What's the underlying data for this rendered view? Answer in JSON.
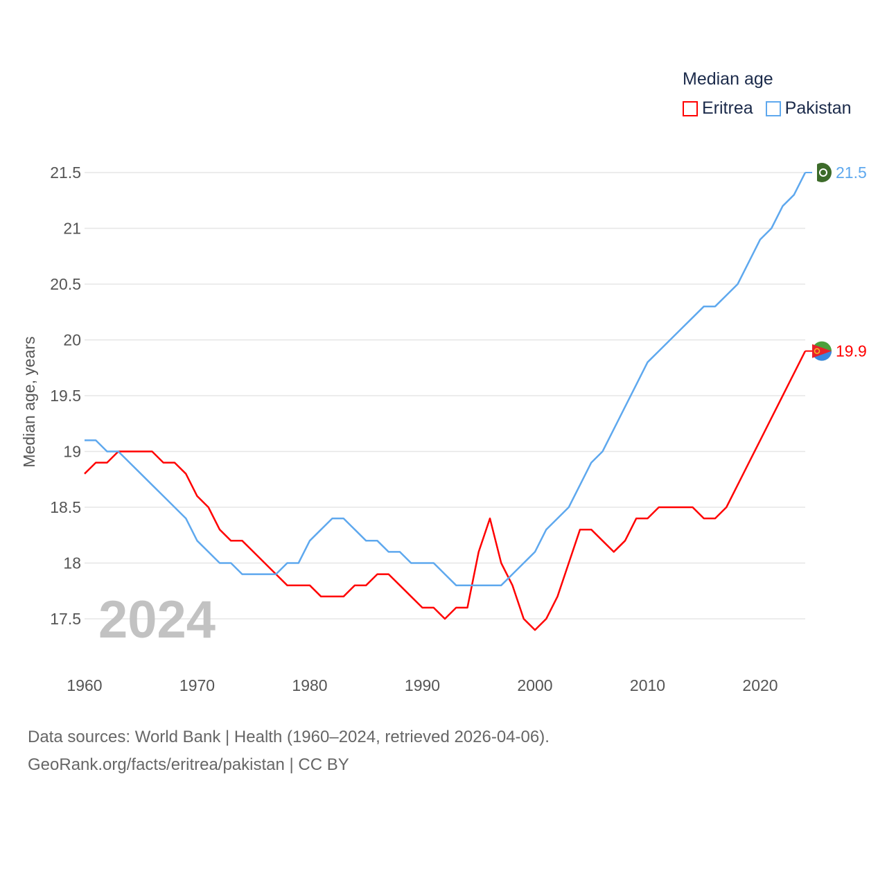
{
  "chart_data": {
    "type": "line",
    "title": "Median age",
    "xlabel": "",
    "ylabel": "Median age, years",
    "xlim": [
      1960,
      2024
    ],
    "ylim": [
      17.25,
      21.6
    ],
    "x_ticks": [
      "1960",
      "1970",
      "1980",
      "1990",
      "2000",
      "2010",
      "2020"
    ],
    "y_ticks": [
      "17.5",
      "18",
      "18.5",
      "19",
      "19.5",
      "20",
      "20.5",
      "21",
      "21.5"
    ],
    "grid": true,
    "legend_placement": "top-right",
    "year_label": "2024",
    "x": [
      1960,
      1961,
      1962,
      1963,
      1964,
      1965,
      1966,
      1967,
      1968,
      1969,
      1970,
      1971,
      1972,
      1973,
      1974,
      1975,
      1976,
      1977,
      1978,
      1979,
      1980,
      1981,
      1982,
      1983,
      1984,
      1985,
      1986,
      1987,
      1988,
      1989,
      1990,
      1991,
      1992,
      1993,
      1994,
      1995,
      1996,
      1997,
      1998,
      1999,
      2000,
      2001,
      2002,
      2003,
      2004,
      2005,
      2006,
      2007,
      2008,
      2009,
      2010,
      2011,
      2012,
      2013,
      2014,
      2015,
      2016,
      2017,
      2018,
      2019,
      2020,
      2021,
      2022,
      2023,
      2024
    ],
    "series": [
      {
        "name": "Eritrea",
        "color": "#ff0000",
        "end_label": "19.9",
        "values": [
          18.8,
          18.9,
          18.9,
          19.0,
          19.0,
          19.0,
          19.0,
          18.9,
          18.9,
          18.8,
          18.6,
          18.5,
          18.3,
          18.2,
          18.2,
          18.1,
          18.0,
          17.9,
          17.8,
          17.8,
          17.8,
          17.7,
          17.7,
          17.7,
          17.8,
          17.8,
          17.9,
          17.9,
          17.8,
          17.7,
          17.6,
          17.6,
          17.5,
          17.6,
          17.6,
          18.1,
          18.4,
          18.0,
          17.8,
          17.5,
          17.4,
          17.5,
          17.7,
          18.0,
          18.3,
          18.3,
          18.2,
          18.1,
          18.2,
          18.4,
          18.4,
          18.5,
          18.5,
          18.5,
          18.5,
          18.4,
          18.4,
          18.5,
          18.7,
          18.9,
          19.1,
          19.3,
          19.5,
          19.7,
          19.9
        ]
      },
      {
        "name": "Pakistan",
        "color": "#5ea8ee",
        "end_label": "21.5",
        "values": [
          19.1,
          19.1,
          19.0,
          19.0,
          18.9,
          18.8,
          18.7,
          18.6,
          18.5,
          18.4,
          18.2,
          18.1,
          18.0,
          18.0,
          17.9,
          17.9,
          17.9,
          17.9,
          18.0,
          18.0,
          18.2,
          18.3,
          18.4,
          18.4,
          18.3,
          18.2,
          18.2,
          18.1,
          18.1,
          18.0,
          18.0,
          18.0,
          17.9,
          17.8,
          17.8,
          17.8,
          17.8,
          17.8,
          17.9,
          18.0,
          18.1,
          18.3,
          18.4,
          18.5,
          18.7,
          18.9,
          19.0,
          19.2,
          19.4,
          19.6,
          19.8,
          19.9,
          20.0,
          20.1,
          20.2,
          20.3,
          20.3,
          20.4,
          20.5,
          20.7,
          20.9,
          21.0,
          21.2,
          21.3,
          21.5
        ]
      }
    ]
  },
  "footer": {
    "line1": "Data sources: World Bank | Health (1960–2024, retrieved 2026-04-06).",
    "line2": "GeoRank.org/facts/eritrea/pakistan | CC BY"
  }
}
